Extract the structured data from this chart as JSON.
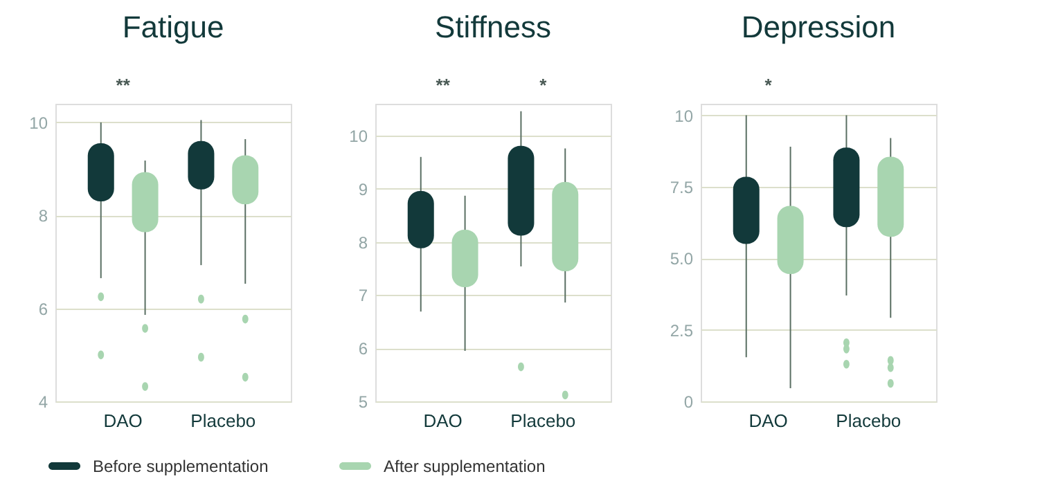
{
  "chart_data": [
    {
      "type": "box",
      "title": "Fatigue",
      "categories": [
        "DAO",
        "Placebo"
      ],
      "ylim": [
        4,
        10.4
      ],
      "yticks": [
        4,
        6,
        8,
        10
      ],
      "grid": "y",
      "legend": "bottom",
      "series": [
        {
          "name": "Before supplementation",
          "color": "#12393a",
          "boxes": [
            {
              "low": 6.65,
              "q1": 8.3,
              "q3": 9.55,
              "high": 10.0,
              "outliers": [
                6.25,
                5.0
              ]
            },
            {
              "low": 6.93,
              "q1": 8.56,
              "q3": 9.6,
              "high": 10.05,
              "outliers": [
                6.2,
                4.95
              ]
            }
          ]
        },
        {
          "name": "After supplementation",
          "color": "#a8d5b0",
          "boxes": [
            {
              "low": 5.86,
              "q1": 7.64,
              "q3": 8.93,
              "high": 9.18,
              "outliers": [
                5.57,
                4.32
              ]
            },
            {
              "low": 6.53,
              "q1": 8.24,
              "q3": 9.29,
              "high": 9.64,
              "outliers": [
                5.77,
                4.52
              ]
            }
          ]
        }
      ],
      "annotations": [
        "**"
      ]
    },
    {
      "type": "box",
      "title": "Stiffness",
      "categories": [
        "DAO",
        "Placebo"
      ],
      "ylim": [
        5,
        10.6
      ],
      "yticks": [
        5,
        6,
        7,
        8,
        9,
        10
      ],
      "grid": "y",
      "legend": "bottom",
      "series": [
        {
          "name": "Before supplementation",
          "color": "#12393a",
          "boxes": [
            {
              "low": 6.69,
              "q1": 7.88,
              "q3": 8.96,
              "high": 9.6
            },
            {
              "low": 7.54,
              "q1": 8.12,
              "q3": 9.81,
              "high": 10.46,
              "outliers": [
                5.65
              ]
            }
          ]
        },
        {
          "name": "After supplementation",
          "color": "#a8d5b0",
          "boxes": [
            {
              "low": 5.95,
              "q1": 7.15,
              "q3": 8.23,
              "high": 8.87
            },
            {
              "low": 6.86,
              "q1": 7.45,
              "q3": 9.13,
              "high": 9.76,
              "outliers": [
                5.12
              ]
            }
          ]
        }
      ],
      "annotations": [
        "**",
        "*"
      ]
    },
    {
      "type": "box",
      "title": "Depression",
      "categories": [
        "DAO",
        "Placebo"
      ],
      "ylim": [
        0,
        10.4
      ],
      "yticks": [
        0,
        2.5,
        {
          "value": 5,
          "label": "5.0"
        },
        7.5,
        10
      ],
      "grid": "y",
      "legend": "bottom",
      "series": [
        {
          "name": "Before supplementation",
          "color": "#12393a",
          "boxes": [
            {
              "low": 1.54,
              "q1": 5.5,
              "q3": 7.85,
              "high": 10.0
            },
            {
              "low": 3.7,
              "q1": 6.09,
              "q3": 8.87,
              "high": 10.0,
              "outliers": [
                2.05,
                1.83,
                1.3
              ]
            }
          ]
        },
        {
          "name": "After supplementation",
          "color": "#a8d5b0",
          "boxes": [
            {
              "low": 0.46,
              "q1": 4.45,
              "q3": 6.83,
              "high": 8.9
            },
            {
              "low": 2.92,
              "q1": 5.75,
              "q3": 8.55,
              "high": 9.2,
              "outliers": [
                1.43,
                1.18,
                0.63
              ]
            }
          ]
        }
      ],
      "annotations": [
        "*"
      ]
    }
  ]
}
